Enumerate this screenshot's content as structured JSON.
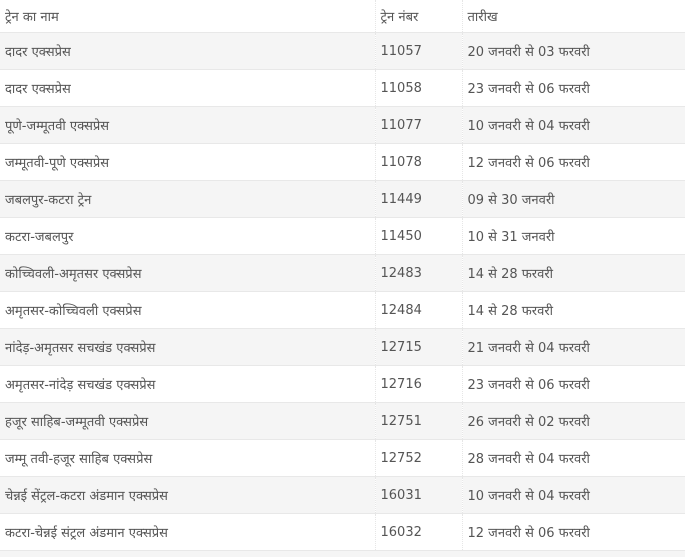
{
  "table": {
    "headers": [
      "ट्रेन का नाम",
      "ट्रेन नंबर",
      "तारीख"
    ],
    "rows": [
      [
        "दादर एक्सप्रेस",
        "11057",
        "20 जनवरी से 03 फरवरी"
      ],
      [
        "दादर एक्सप्रेस",
        "11058",
        "23 जनवरी से 06 फरवरी"
      ],
      [
        "पूणे-जम्मूतवी एक्सप्रेस",
        "11077",
        "10 जनवरी से 04 फरवरी"
      ],
      [
        "जम्मूतवी-पूणे एक्सप्रेस",
        "11078",
        "12 जनवरी से 06 फरवरी"
      ],
      [
        "जबलपुर-कटरा ट्रेन",
        "11449",
        "09 से 30 जनवरी"
      ],
      [
        "कटरा-जबलपुर",
        "11450",
        "10 से 31 जनवरी"
      ],
      [
        "कोच्चिवली-अमृतसर एक्सप्रेस",
        "12483",
        "14 से 28 फरवरी"
      ],
      [
        "अमृतसर-कोच्चिवली एक्सप्रेस",
        "12484",
        "14 से 28 फरवरी"
      ],
      [
        "नांदेड़-अमृतसर सचखंड एक्सप्रेस",
        "12715",
        "21 जनवरी से 04 फरवरी"
      ],
      [
        "अमृतसर-नांदेड़ सचखंड एक्सप्रेस",
        "12716",
        "23 जनवरी से 06 फरवरी"
      ],
      [
        "हजूर साहिब-जम्मूतवी एक्सप्रेस",
        "12751",
        "26 जनवरी से 02 फरवरी"
      ],
      [
        "जम्मू तवी-हजूर साहिब एक्सप्रेस",
        "12752",
        "28 जनवरी से 04 फरवरी"
      ],
      [
        "चेन्नई सेंट्रल-कटरा अंडमान एक्सप्रेस",
        "16031",
        "10 जनवरी से 04 फरवरी"
      ],
      [
        "कटरा-चेन्नई संट्रल अंडमान एक्सप्रेस",
        "16032",
        "12 जनवरी से 06 फरवरी"
      ]
    ]
  },
  "colors": {
    "text": "#555555",
    "stripe": "#f5f5f5",
    "border": "#e8e8e8"
  }
}
